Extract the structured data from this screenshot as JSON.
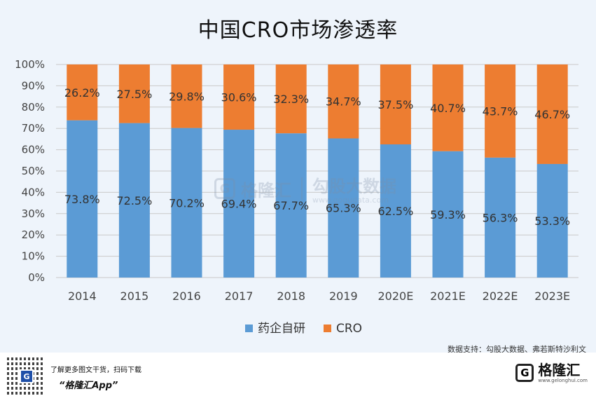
{
  "title": "中国CRO市场渗透率",
  "source_text": "数据支持：勾股大数据、弗若斯特沙利文",
  "watermark": {
    "logo_letter": "G",
    "brand": "格隆汇",
    "sub_brand": "勾股大数据",
    "url": "www.gogudata.com"
  },
  "footer": {
    "promo_line": "了解更多图文干货，扫码下载",
    "app_name": "“格隆汇App”",
    "qr_letter": "G",
    "brand_logo_letter": "G",
    "brand_name": "格隆汇",
    "brand_url": "www.gelonghui.com"
  },
  "colors": {
    "series_self": "#5b9bd5",
    "series_cro": "#ed7d31",
    "background": "#eef4fb",
    "grid": "#c9c9c9"
  },
  "chart_data": {
    "type": "bar",
    "stacked": true,
    "percent": true,
    "title": "中国CRO市场渗透率",
    "categories": [
      "2014",
      "2015",
      "2016",
      "2017",
      "2018",
      "2019",
      "2020E",
      "2021E",
      "2022E",
      "2023E"
    ],
    "series": [
      {
        "name": "药企自研",
        "values": [
          73.8,
          72.5,
          70.2,
          69.4,
          67.7,
          65.3,
          62.5,
          59.3,
          56.3,
          53.3
        ],
        "labels": [
          "73.8%",
          "72.5%",
          "70.2%",
          "69.4%",
          "67.7%",
          "65.3%",
          "62.5%",
          "59.3%",
          "56.3%",
          "53.3%"
        ]
      },
      {
        "name": "CRO",
        "values": [
          26.2,
          27.5,
          29.8,
          30.6,
          32.3,
          34.7,
          37.5,
          40.7,
          43.7,
          46.7
        ],
        "labels": [
          "26.2%",
          "27.5%",
          "29.8%",
          "30.6%",
          "32.3%",
          "34.7%",
          "37.5%",
          "40.7%",
          "43.7%",
          "46.7%"
        ]
      }
    ],
    "ylim": [
      0,
      100
    ],
    "yticks": [
      "0%",
      "10%",
      "20%",
      "30%",
      "40%",
      "50%",
      "60%",
      "70%",
      "80%",
      "90%",
      "100%"
    ],
    "grid": true,
    "legend": "bottom"
  }
}
